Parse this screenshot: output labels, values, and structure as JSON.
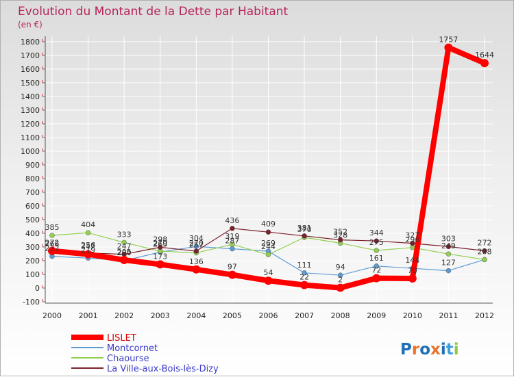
{
  "chart_data": {
    "type": "line",
    "title": "Evolution du Montant de la Dette par Habitant",
    "unit": "(en €)",
    "x": [
      "2000",
      "2001",
      "2002",
      "2003",
      "2004",
      "2005",
      "2006",
      "2007",
      "2008",
      "2009",
      "2010",
      "2011",
      "2012"
    ],
    "ylim": [
      -100,
      1800
    ],
    "yticks": [
      -100,
      0,
      100,
      200,
      300,
      400,
      500,
      600,
      700,
      800,
      900,
      1000,
      1100,
      1200,
      1300,
      1400,
      1500,
      1600,
      1700,
      1800
    ],
    "grid": true,
    "series": [
      {
        "name": "LISLET",
        "color": "#ff0000",
        "values": [
          272,
          247,
          205,
          173,
          136,
          97,
          54,
          22,
          2,
          72,
          70,
          1757,
          1644
        ],
        "bold": true
      },
      {
        "name": "Montcornet",
        "color": "#5b9bd5",
        "values": [
          232,
          219,
          200,
          263,
          304,
          287,
          269,
          111,
          94,
          161,
          144,
          127,
          208
        ],
        "bold": false
      },
      {
        "name": "Chaourse",
        "color": "#92d050",
        "values": [
          385,
          404,
          333,
          270,
          257,
          319,
          244,
          370,
          328,
          275,
          296,
          249,
          208
        ],
        "bold": false
      },
      {
        "name": "La Ville-aux-Bois-lès-Dizy",
        "color": "#7b1f2a",
        "values": [
          266,
          256,
          247,
          298,
          270,
          436,
          409,
          381,
          352,
          344,
          327,
          303,
          272
        ],
        "bold": false
      }
    ],
    "point_labels": [
      {
        "series": 2,
        "idx": 0,
        "text": "385"
      },
      {
        "series": 0,
        "idx": 0,
        "text": "272"
      },
      {
        "series": 3,
        "idx": 0,
        "text": "266"
      },
      {
        "series": 1,
        "idx": 0,
        "text": "232"
      },
      {
        "series": 2,
        "idx": 1,
        "text": "404"
      },
      {
        "series": 3,
        "idx": 1,
        "text": "256"
      },
      {
        "series": 0,
        "idx": 1,
        "text": "247"
      },
      {
        "series": 1,
        "idx": 1,
        "text": "219"
      },
      {
        "series": 2,
        "idx": 2,
        "text": "333"
      },
      {
        "series": 3,
        "idx": 2,
        "text": "247"
      },
      {
        "series": 0,
        "idx": 2,
        "text": "205"
      },
      {
        "series": 1,
        "idx": 2,
        "text": "200"
      },
      {
        "series": 3,
        "idx": 3,
        "text": "298"
      },
      {
        "series": 2,
        "idx": 3,
        "text": "270"
      },
      {
        "series": 1,
        "idx": 3,
        "text": "263"
      },
      {
        "series": 0,
        "idx": 3,
        "text": "173"
      },
      {
        "series": 1,
        "idx": 4,
        "text": "304"
      },
      {
        "series": 3,
        "idx": 4,
        "text": "270"
      },
      {
        "series": 2,
        "idx": 4,
        "text": "257"
      },
      {
        "series": 0,
        "idx": 4,
        "text": "136"
      },
      {
        "series": 3,
        "idx": 5,
        "text": "436"
      },
      {
        "series": 2,
        "idx": 5,
        "text": "319"
      },
      {
        "series": 1,
        "idx": 5,
        "text": "287"
      },
      {
        "series": 0,
        "idx": 5,
        "text": "97"
      },
      {
        "series": 3,
        "idx": 6,
        "text": "409"
      },
      {
        "series": 1,
        "idx": 6,
        "text": "269"
      },
      {
        "series": 2,
        "idx": 6,
        "text": "244"
      },
      {
        "series": 0,
        "idx": 6,
        "text": "54"
      },
      {
        "series": 3,
        "idx": 7,
        "text": "381"
      },
      {
        "series": 2,
        "idx": 7,
        "text": "370"
      },
      {
        "series": 1,
        "idx": 7,
        "text": "111"
      },
      {
        "series": 0,
        "idx": 7,
        "text": "22"
      },
      {
        "series": 3,
        "idx": 8,
        "text": "352"
      },
      {
        "series": 2,
        "idx": 8,
        "text": "328"
      },
      {
        "series": 1,
        "idx": 8,
        "text": "94"
      },
      {
        "series": 0,
        "idx": 8,
        "text": "2"
      },
      {
        "series": 3,
        "idx": 9,
        "text": "344"
      },
      {
        "series": 2,
        "idx": 9,
        "text": "275"
      },
      {
        "series": 1,
        "idx": 9,
        "text": "161"
      },
      {
        "series": 0,
        "idx": 9,
        "text": "72"
      },
      {
        "series": 3,
        "idx": 10,
        "text": "327"
      },
      {
        "series": 2,
        "idx": 10,
        "text": "296"
      },
      {
        "series": 1,
        "idx": 10,
        "text": "144"
      },
      {
        "series": 0,
        "idx": 10,
        "text": "70"
      },
      {
        "series": 0,
        "idx": 11,
        "text": "1757"
      },
      {
        "series": 3,
        "idx": 11,
        "text": "303"
      },
      {
        "series": 2,
        "idx": 11,
        "text": "249"
      },
      {
        "series": 1,
        "idx": 11,
        "text": "127"
      },
      {
        "series": 0,
        "idx": 12,
        "text": "1644"
      },
      {
        "series": 3,
        "idx": 12,
        "text": "272"
      },
      {
        "series": 1,
        "idx": 12,
        "text": "208"
      }
    ]
  },
  "logo": {
    "text": "Proxiti",
    "letter_colors": [
      "#1f6fb5",
      "#e8732a",
      "#1f6fb5",
      "#e8732a",
      "#1f6fb5",
      "#3aa0d8",
      "#8cc63f"
    ]
  }
}
